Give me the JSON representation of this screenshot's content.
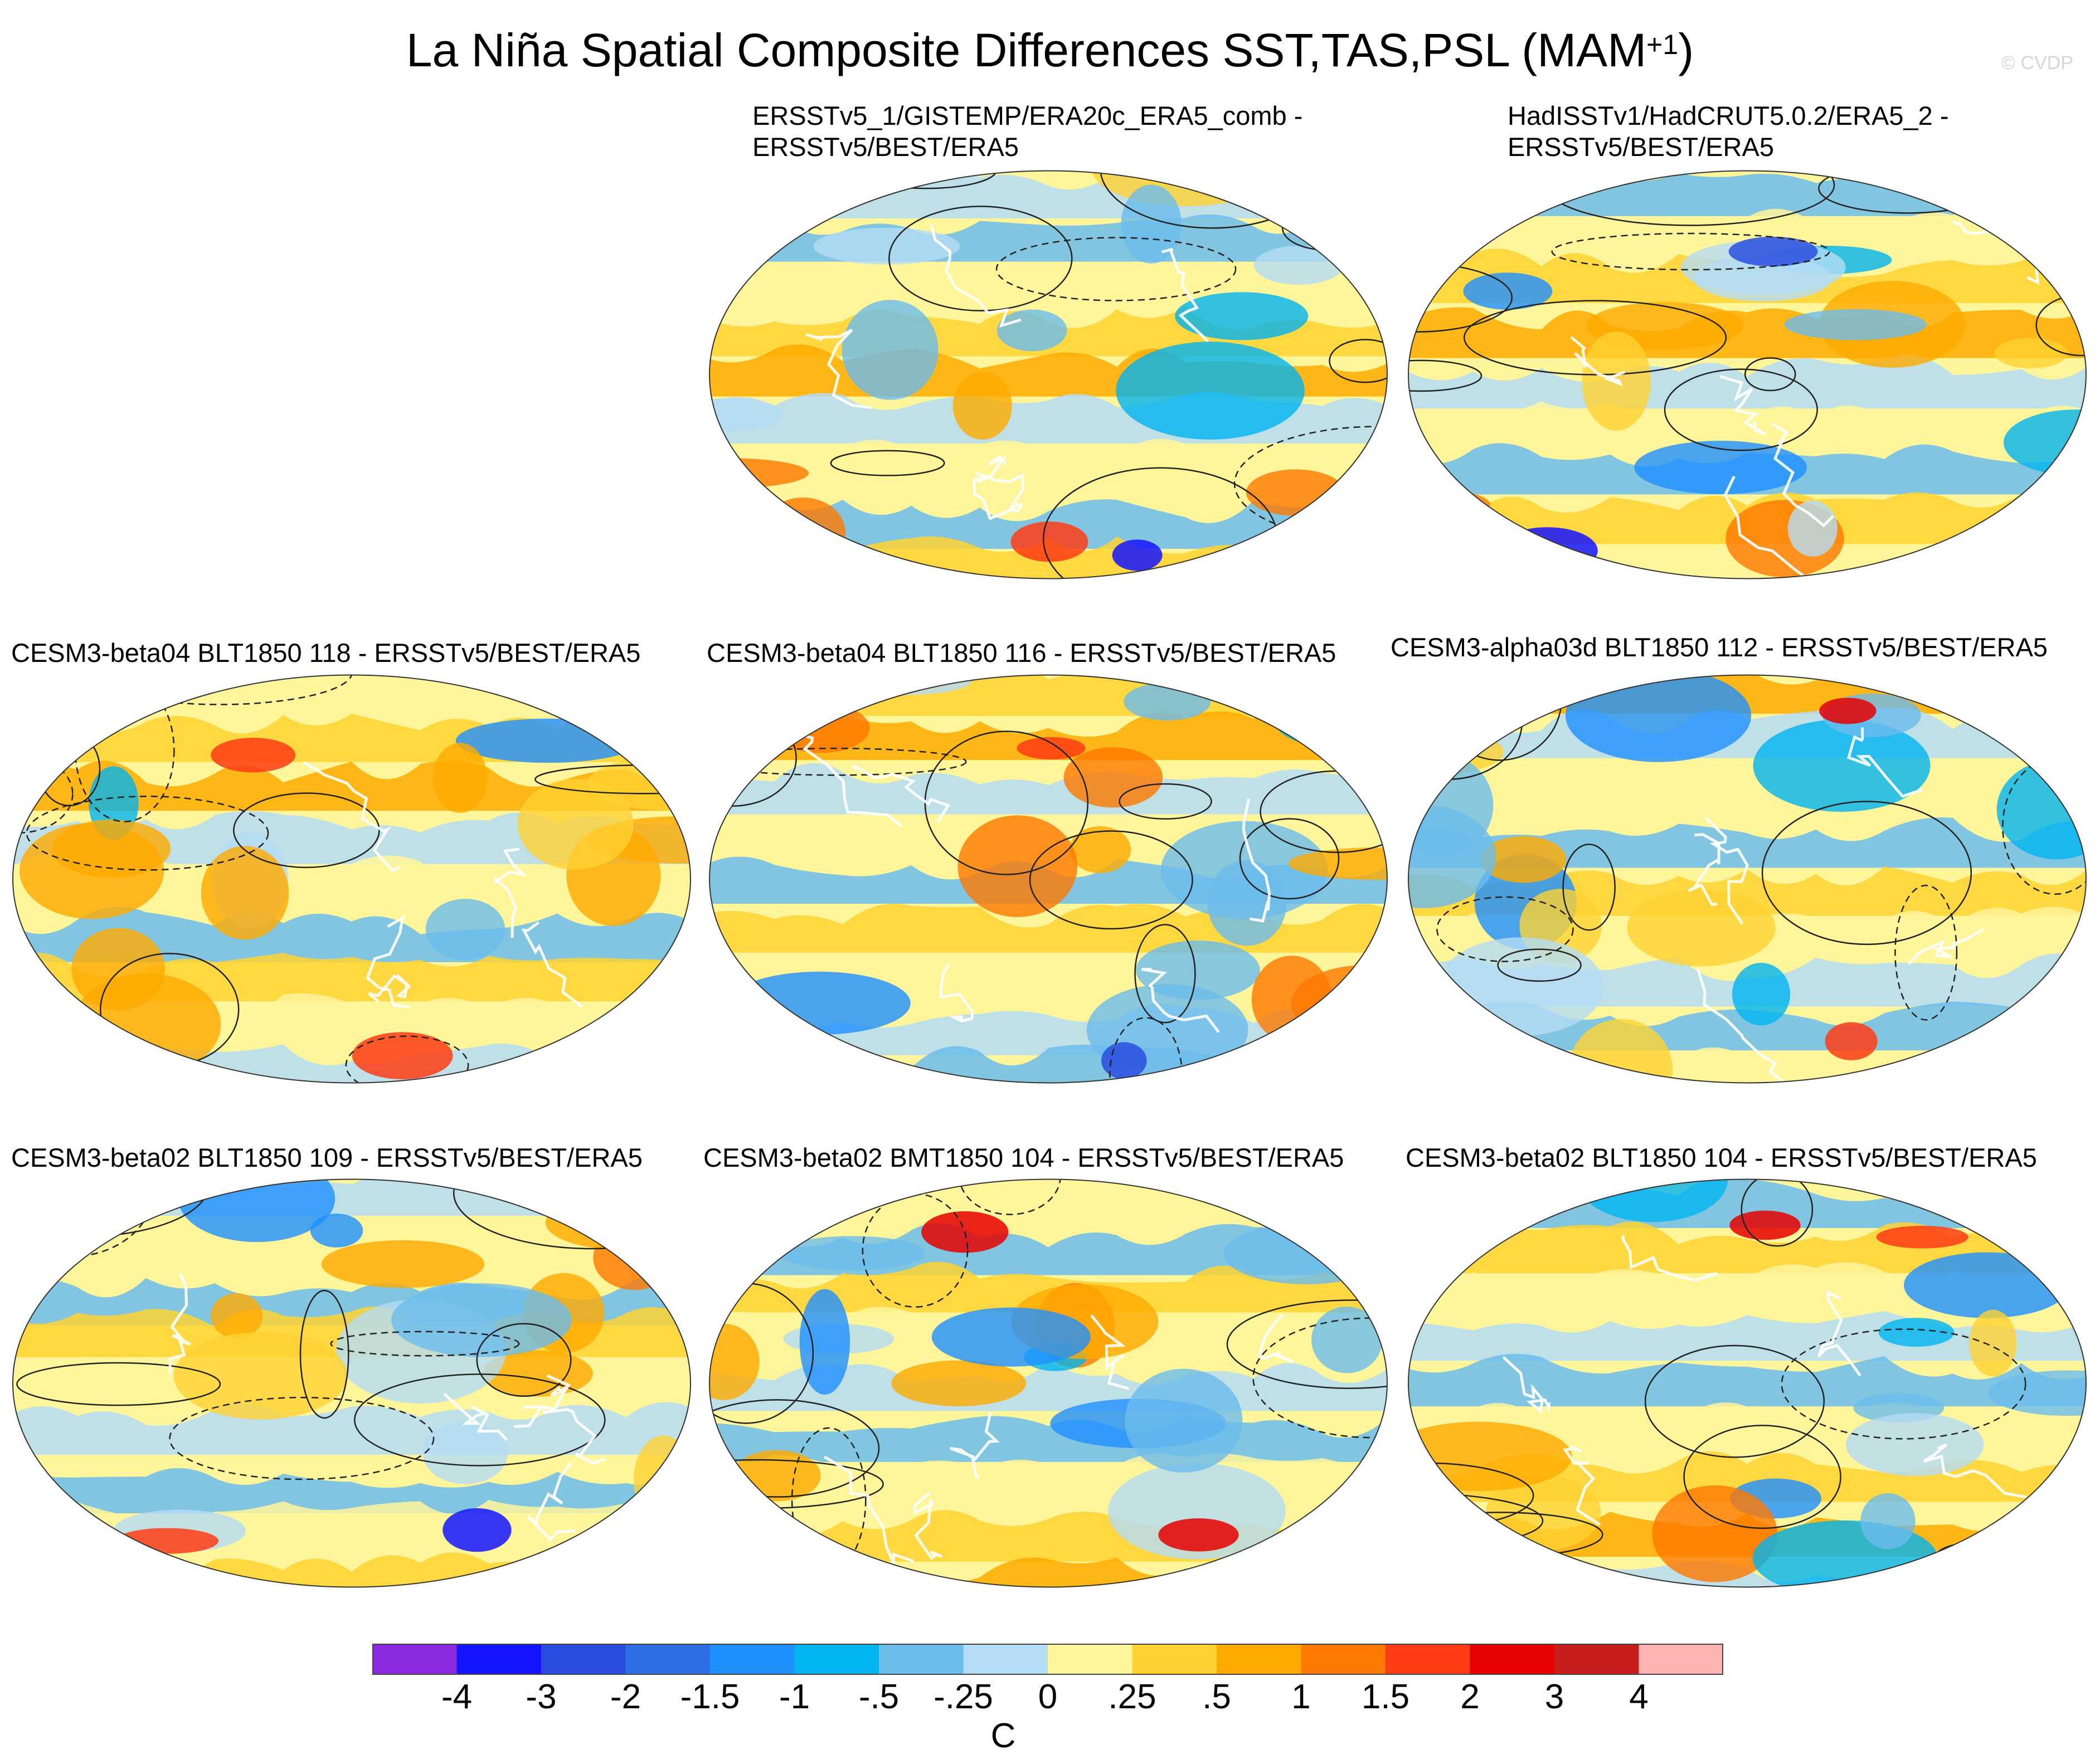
{
  "figure": {
    "title_main": "La Niña Spatial Composite Differences SST,TAS,PSL (MAM",
    "title_sup": "+1",
    "title_end": ")",
    "copyright": "© CVDP"
  },
  "panels": [
    {
      "line1": "ERSSTv5_1/GISTEMP/ERA20c_ERA5_comb -",
      "line2": "ERSSTv5/BEST/ERA5"
    },
    {
      "line1": "HadISSTv1/HadCRUT5.0.2/ERA5_2 -",
      "line2": "ERSSTv5/BEST/ERA5"
    },
    {
      "line1": "CESM3-beta04 BLT1850 118 - ERSSTv5/BEST/ERA5"
    },
    {
      "line1": "CESM3-beta04 BLT1850 116 - ERSSTv5/BEST/ERA5"
    },
    {
      "line1": "CESM3-alpha03d BLT1850 112 - ERSSTv5/BEST/ERA5"
    },
    {
      "line1": "CESM3-beta02 BLT1850 109 - ERSSTv5/BEST/ERA5"
    },
    {
      "line1": "CESM3-beta02 BMT1850 104 - ERSSTv5/BEST/ERA5"
    },
    {
      "line1": "CESM3-beta02 BLT1850 104 - ERSSTv5/BEST/ERA5"
    }
  ],
  "chart_data": {
    "type": "heatmap",
    "projection": "global map panels with filled contours (SST/TAS) and line contours (PSL)",
    "colorbar": {
      "label": "C",
      "levels": [
        "-4",
        "-3",
        "-2",
        "-1.5",
        "-1",
        "-.5",
        "-.25",
        "0",
        ".25",
        ".5",
        "1",
        "1.5",
        "2",
        "3",
        "4"
      ],
      "colors": [
        "#8a2be2",
        "#1414ff",
        "#2a4de0",
        "#2f6fe6",
        "#1e90ff",
        "#00b4f0",
        "#6cbcec",
        "#b4dcf4",
        "#fff59a",
        "#ffd232",
        "#ffaa00",
        "#ff7800",
        "#ff3c14",
        "#e60000",
        "#c81e1e",
        "#ffb4b4"
      ]
    }
  }
}
